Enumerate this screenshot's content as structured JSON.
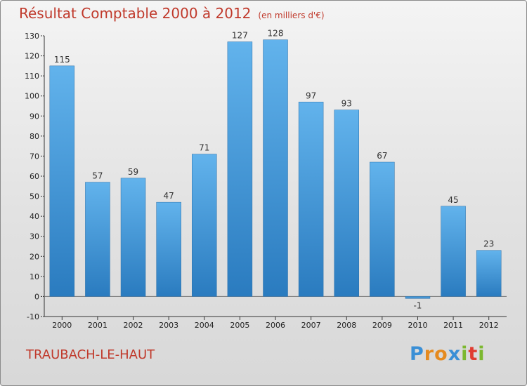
{
  "header": {
    "title": "Résultat Comptable 2000 à 2012",
    "subtitle": "(en milliers d'€)"
  },
  "footer": {
    "commune": "TRAUBACH-LE-HAUT",
    "logo": {
      "letters": [
        "P",
        "r",
        "o",
        "x",
        "i",
        "t",
        "i"
      ],
      "colors": [
        "#3a8fd6",
        "#e58a1f",
        "#e58a1f",
        "#3a8fd6",
        "#7cb82f",
        "#e03c31",
        "#7cb82f"
      ]
    }
  },
  "colors": {
    "title": "#c0392b",
    "bar_light": "#62b3ec",
    "bar_dark": "#2a7bbf"
  },
  "chart_data": {
    "type": "bar",
    "title": "Résultat Comptable 2000 à 2012",
    "subtitle": "(en milliers d'€)",
    "xlabel": "",
    "ylabel": "",
    "categories": [
      "2000",
      "2001",
      "2002",
      "2003",
      "2004",
      "2005",
      "2006",
      "2007",
      "2008",
      "2009",
      "2010",
      "2011",
      "2012"
    ],
    "values": [
      115,
      57,
      59,
      47,
      71,
      127,
      128,
      97,
      93,
      67,
      -1,
      45,
      23
    ],
    "ylim": [
      -10,
      130
    ],
    "yticks": [
      -10,
      0,
      10,
      20,
      30,
      40,
      50,
      60,
      70,
      80,
      90,
      100,
      110,
      120,
      130
    ],
    "grid": false
  }
}
